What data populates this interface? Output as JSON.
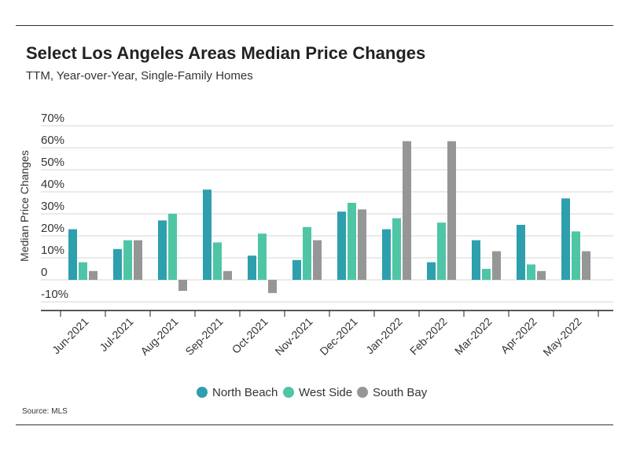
{
  "header": {
    "title": "Select Los Angeles Areas Median Price Changes",
    "subtitle": "TTM, Year-over-Year, Single-Family Homes"
  },
  "footer": {
    "source": "Source:  MLS"
  },
  "colors": {
    "north_beach": "#2E9FAD",
    "west_side": "#4EC6A6",
    "south_bay": "#969696"
  },
  "chart_data": {
    "type": "bar",
    "title": "Select Los Angeles Areas Median Price Changes",
    "subtitle": "TTM, Year-over-Year, Single-Family Homes",
    "xlabel": "",
    "ylabel": "Median Price Changes",
    "ylim": [
      -10,
      70
    ],
    "yticks": [
      -10,
      0,
      10,
      20,
      30,
      40,
      50,
      60,
      70
    ],
    "ytick_labels": [
      "-10%",
      "0",
      "10%",
      "20%",
      "30%",
      "40%",
      "50%",
      "60%",
      "70%"
    ],
    "grid": true,
    "legend_position": "bottom",
    "categories": [
      "Jun-2021",
      "Jul-2021",
      "Aug-2021",
      "Sep-2021",
      "Oct-2021",
      "Nov-2021",
      "Dec-2021",
      "Jan-2022",
      "Feb-2022",
      "Mar-2022",
      "Apr-2022",
      "May-2022"
    ],
    "series": [
      {
        "name": "North Beach",
        "color": "#2E9FAD",
        "values": [
          23,
          14,
          27,
          41,
          11,
          9,
          31,
          23,
          8,
          18,
          25,
          37
        ]
      },
      {
        "name": "West Side",
        "color": "#4EC6A6",
        "values": [
          8,
          18,
          30,
          17,
          21,
          24,
          35,
          28,
          26,
          5,
          7,
          22
        ]
      },
      {
        "name": "South Bay",
        "color": "#969696",
        "values": [
          4,
          18,
          -5,
          4,
          -6,
          18,
          32,
          63,
          63,
          13,
          4,
          13
        ]
      }
    ]
  }
}
